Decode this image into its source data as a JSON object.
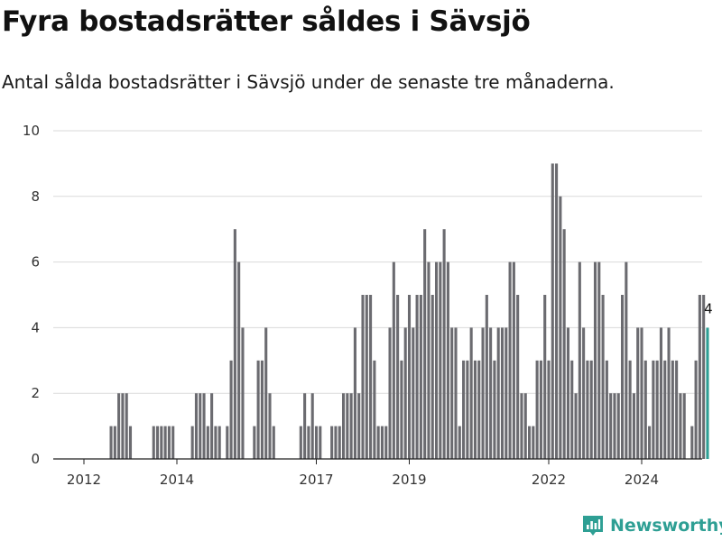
{
  "header": {
    "title": "Fyra bostadsrätter såldes i Sävsjö",
    "subtitle": "Antal sålda bostadsrätter i Sävsjö under de senaste tre månaderna."
  },
  "brand": {
    "name": "Newsworthy",
    "icon": "bar-chart-logo-icon",
    "color": "#2e9f94"
  },
  "chart_data": {
    "type": "bar",
    "title": "Fyra bostadsrätter såldes i Sävsjö",
    "subtitle": "Antal sålda bostadsrätter i Sävsjö under de senaste tre månaderna.",
    "xlabel": "",
    "ylabel": "",
    "ylim": [
      0,
      10
    ],
    "yticks": [
      0,
      2,
      4,
      6,
      8,
      10
    ],
    "xticks": [
      "2012",
      "2014",
      "2017",
      "2019",
      "2022",
      "2024"
    ],
    "grid": true,
    "bar_color": "#6b6b70",
    "highlight_color": "#2e9f94",
    "start": "2011-10",
    "frequency": "monthly",
    "values": [
      0,
      0,
      0,
      0,
      0,
      0,
      0,
      0,
      0,
      0,
      1,
      1,
      2,
      2,
      2,
      1,
      0,
      0,
      0,
      0,
      0,
      1,
      1,
      1,
      1,
      1,
      1,
      0,
      0,
      0,
      0,
      1,
      2,
      2,
      2,
      1,
      2,
      1,
      1,
      0,
      1,
      3,
      7,
      6,
      4,
      0,
      0,
      1,
      3,
      3,
      4,
      2,
      1,
      0,
      0,
      0,
      0,
      0,
      0,
      1,
      2,
      1,
      2,
      1,
      1,
      0,
      0,
      1,
      1,
      1,
      2,
      2,
      2,
      4,
      2,
      5,
      5,
      5,
      3,
      1,
      1,
      1,
      4,
      6,
      5,
      3,
      4,
      5,
      4,
      5,
      5,
      7,
      6,
      5,
      6,
      6,
      7,
      6,
      4,
      4,
      1,
      3,
      3,
      4,
      3,
      3,
      4,
      5,
      4,
      3,
      4,
      4,
      4,
      6,
      6,
      5,
      2,
      2,
      1,
      1,
      3,
      3,
      5,
      3,
      9,
      9,
      8,
      7,
      4,
      3,
      2,
      6,
      4,
      3,
      3,
      6,
      6,
      5,
      3,
      2,
      2,
      2,
      5,
      6,
      3,
      2,
      4,
      4,
      3,
      1,
      3,
      3,
      4,
      3,
      4,
      3,
      3,
      2,
      2,
      0,
      1,
      3,
      5,
      5,
      4
    ],
    "highlight_last": true,
    "last_value_label": "4"
  }
}
